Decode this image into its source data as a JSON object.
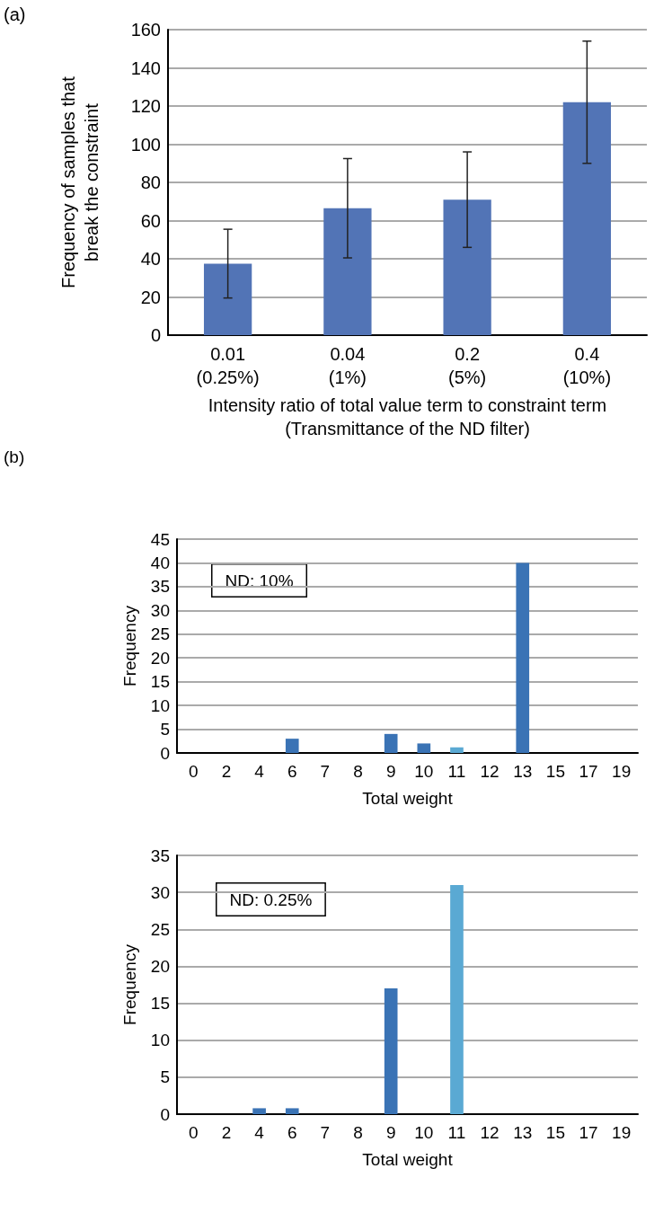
{
  "chart_data": [
    {
      "type": "bar",
      "ylabel": "Frequency of samples that\nbreak the constraint",
      "xlabel": "Intensity ratio of total value term to constraint term\n(Transmittance of the ND filter)",
      "categories": [
        "0.01\n(0.25%)",
        "0.04\n(1%)",
        "0.2\n(5%)",
        "0.4\n(10%)"
      ],
      "values": [
        37.5,
        66.5,
        71,
        122
      ],
      "errors": [
        18,
        26,
        25,
        32
      ],
      "color": "#5274b6",
      "ylim": [
        0,
        160
      ],
      "yticks": [
        0,
        20,
        40,
        60,
        80,
        100,
        120,
        140,
        160
      ],
      "grid": "y",
      "annotations": [
        "(a)"
      ]
    },
    {
      "type": "bar",
      "ylabel": "Frequency",
      "xlabel": "Total weight",
      "categories": [
        "0",
        "2",
        "4",
        "6",
        "7",
        "8",
        "9",
        "10",
        "11",
        "12",
        "13",
        "15",
        "17",
        "19"
      ],
      "values": [
        0,
        0,
        0,
        3,
        0,
        0,
        4,
        2,
        1.2,
        0,
        40,
        0,
        0,
        0
      ],
      "colors": [
        "#3a73b5",
        "#3a73b5",
        "#3a73b5",
        "#3a73b5",
        "#3a73b5",
        "#3a73b5",
        "#3a73b5",
        "#3a73b5",
        "#5aa9d3",
        "#3a73b5",
        "#3a73b5",
        "#3a73b5",
        "#3a73b5",
        "#3a73b5"
      ],
      "ylim": [
        0,
        45
      ],
      "yticks": [
        0,
        5,
        10,
        15,
        20,
        25,
        30,
        35,
        40,
        45
      ],
      "grid": "y",
      "annotations": [
        "(b)",
        "ND: 10%"
      ]
    },
    {
      "type": "bar",
      "ylabel": "Frequency",
      "xlabel": "Total weight",
      "categories": [
        "0",
        "2",
        "4",
        "6",
        "7",
        "8",
        "9",
        "10",
        "11",
        "12",
        "13",
        "15",
        "17",
        "19"
      ],
      "values": [
        0,
        0,
        0.8,
        0.8,
        0,
        0,
        17,
        0,
        31,
        0,
        0,
        0,
        0,
        0
      ],
      "colors": [
        "#3a73b5",
        "#3a73b5",
        "#3a73b5",
        "#3a73b5",
        "#3a73b5",
        "#3a73b5",
        "#3a73b5",
        "#3a73b5",
        "#5aa9d3",
        "#3a73b5",
        "#3a73b5",
        "#3a73b5",
        "#3a73b5",
        "#3a73b5"
      ],
      "ylim": [
        0,
        35
      ],
      "yticks": [
        0,
        5,
        10,
        15,
        20,
        25,
        30,
        35
      ],
      "grid": "y",
      "annotations": [
        "ND: 0.25%"
      ]
    }
  ]
}
